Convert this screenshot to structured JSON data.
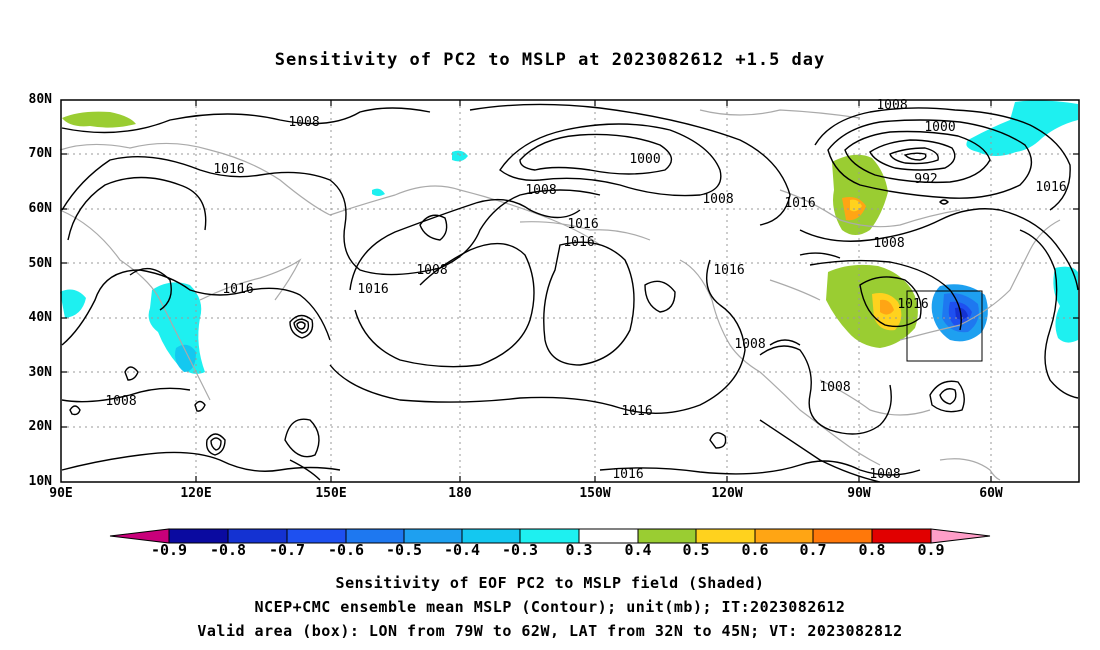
{
  "title": "Sensitivity of PC2 to MSLP at 2023082612 +1.5 day",
  "lat_labels": [
    "80N",
    "70N",
    "60N",
    "50N",
    "40N",
    "30N",
    "20N",
    "10N"
  ],
  "lon_labels": [
    "90E",
    "120E",
    "150E",
    "180",
    "150W",
    "120W",
    "90W",
    "60W"
  ],
  "contour_labels": [
    "1008",
    "1016",
    "1016",
    "1016",
    "1008",
    "1008",
    "1000",
    "1008",
    "1008",
    "1016",
    "1016",
    "1016",
    "1016",
    "1008",
    "1000",
    "992",
    "1016",
    "1008",
    "1016",
    "1016",
    "1008",
    "1008",
    "1008",
    "1016",
    "1008"
  ],
  "colorbar": {
    "labels": [
      "-0.9",
      "-0.8",
      "-0.7",
      "-0.6",
      "-0.5",
      "-0.4",
      "-0.3",
      "0.3",
      "0.4",
      "0.5",
      "0.6",
      "0.7",
      "0.8",
      "0.9"
    ],
    "colors": [
      "#c8007a",
      "#0a0aa0",
      "#1432d2",
      "#1e50f0",
      "#1e78f0",
      "#1ea0f0",
      "#14c8f0",
      "#1ef0f0",
      "#ffffff",
      "#9acd32",
      "#ffd21e",
      "#ffa514",
      "#ff780a",
      "#ff3c00",
      "#e10000",
      "#ff9ec8"
    ]
  },
  "captions": [
    "Sensitivity of EOF PC2 to MSLP field (Shaded)",
    "NCEP+CMC ensemble mean MSLP (Contour); unit(mb); IT:2023082612",
    "Valid area (box): LON from 79W to 62W, LAT from 32N to 45N; VT: 2023082812"
  ]
}
